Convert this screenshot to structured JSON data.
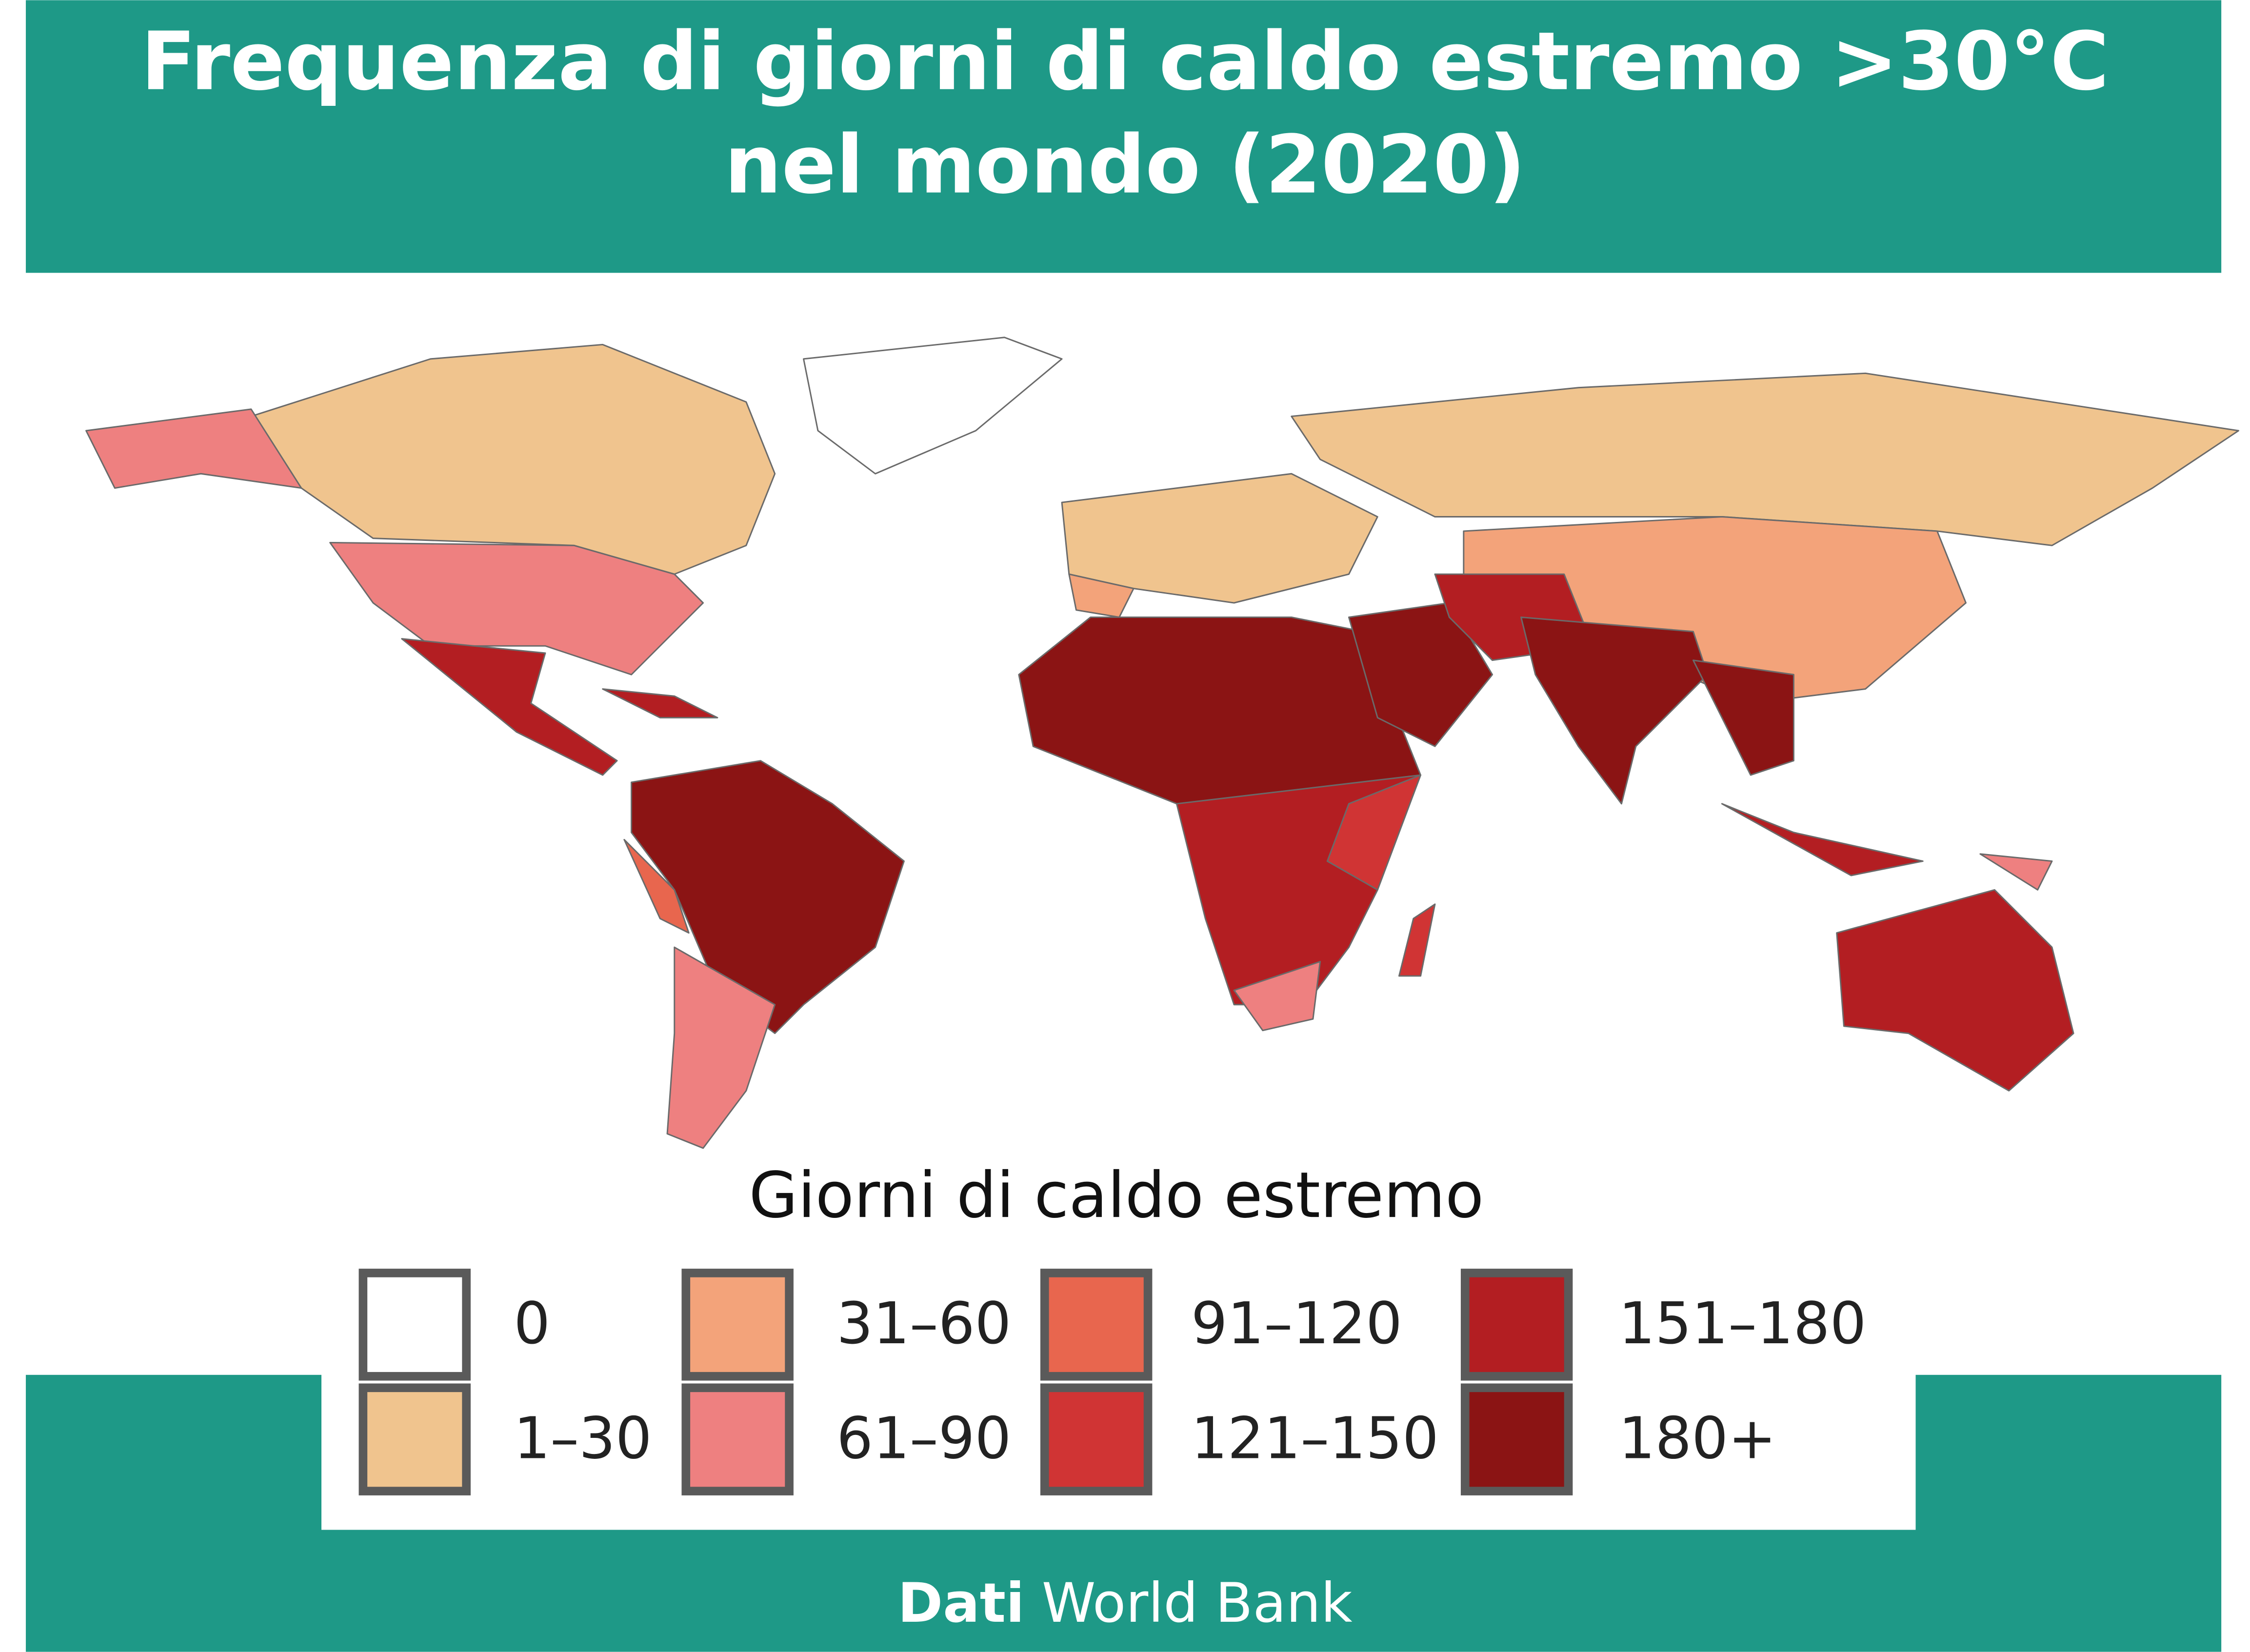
{
  "header": {
    "title_lines": [
      "Frequenza di giorni di caldo estremo >30°C",
      "nel mondo (2020)"
    ]
  },
  "legend": {
    "title": "Giorni di caldo estremo",
    "items": [
      {
        "label": "0",
        "color": "#ffffff"
      },
      {
        "label": "1–30",
        "color": "#f0c48e"
      },
      {
        "label": "31–60",
        "color": "#f3a37a"
      },
      {
        "label": "61–90",
        "color": "#ee8080"
      },
      {
        "label": "91–120",
        "color": "#e8664e"
      },
      {
        "label": "121–150",
        "color": "#d03434"
      },
      {
        "label": "151–180",
        "color": "#b31e22"
      },
      {
        "label": "180+",
        "color": "#8b1414"
      }
    ]
  },
  "footer": {
    "source_label": "Dati",
    "source": "World Bank"
  }
}
